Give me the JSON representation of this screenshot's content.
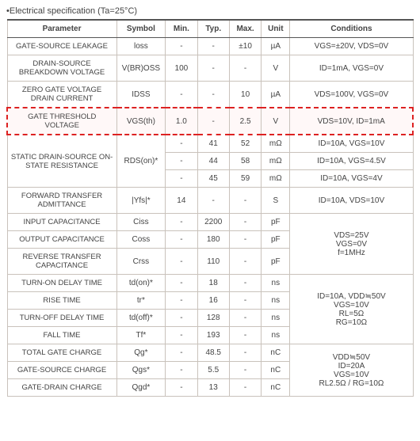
{
  "title": "•Electrical specification (Ta=25°C)",
  "headers": {
    "param": "Parameter",
    "symbol": "Symbol",
    "min": "Min.",
    "typ": "Typ.",
    "max": "Max.",
    "unit": "Unit",
    "cond": "Conditions"
  },
  "rows": {
    "r1": {
      "param": "GATE-SOURCE LEAKAGE",
      "sym": "loss",
      "min": "-",
      "typ": "-",
      "max": "±10",
      "unit": "µA",
      "cond": "VGS=±20V, VDS=0V"
    },
    "r2": {
      "param": "DRAIN-SOURCE BREAKDOWN VOLTAGE",
      "sym": "V(BR)OSS",
      "min": "100",
      "typ": "-",
      "max": "-",
      "unit": "V",
      "cond": "ID=1mA, VGS=0V"
    },
    "r3": {
      "param": "ZERO GATE VOLTAGE DRAIN CURRENT",
      "sym": "IDSS",
      "min": "-",
      "typ": "-",
      "max": "10",
      "unit": "µA",
      "cond": "VDS=100V, VGS=0V"
    },
    "r4": {
      "param": "GATE THRESHOLD VOLTAGE",
      "sym": "VGS(th)",
      "min": "1.0",
      "typ": "-",
      "max": "2.5",
      "unit": "V",
      "cond": "VDS=10V, ID=1mA"
    },
    "r5": {
      "param": "STATIC DRAIN-SOURCE ON-STATE RESISTANCE",
      "sym": "RDS(on)*",
      "a": {
        "min": "-",
        "typ": "41",
        "max": "52",
        "unit": "mΩ",
        "cond": "ID=10A, VGS=10V"
      },
      "b": {
        "min": "-",
        "typ": "44",
        "max": "58",
        "unit": "mΩ",
        "cond": "ID=10A, VGS=4.5V"
      },
      "c": {
        "min": "-",
        "typ": "45",
        "max": "59",
        "unit": "mΩ",
        "cond": "ID=10A, VGS=4V"
      }
    },
    "r6": {
      "param": "FORWARD TRANSFER ADMITTANCE",
      "sym": "|Yfs|*",
      "min": "14",
      "typ": "-",
      "max": "-",
      "unit": "S",
      "cond": "ID=10A, VDS=10V"
    },
    "r7": {
      "param": "INPUT CAPACITANCE",
      "sym": "Ciss",
      "min": "-",
      "typ": "2200",
      "max": "-",
      "unit": "pF"
    },
    "r8": {
      "param": "OUTPUT CAPACITANCE",
      "sym": "Coss",
      "min": "-",
      "typ": "180",
      "max": "-",
      "unit": "pF"
    },
    "r9": {
      "param": "REVERSE TRANSFER CAPACITANCE",
      "sym": "Crss",
      "min": "-",
      "typ": "110",
      "max": "-",
      "unit": "pF"
    },
    "cond_cap": "VDS=25V\nVGS=0V\nf=1MHz",
    "r10": {
      "param": "TURN-ON DELAY TIME",
      "sym": "td(on)*",
      "min": "-",
      "typ": "18",
      "max": "-",
      "unit": "ns"
    },
    "r11": {
      "param": "RISE TIME",
      "sym": "tr*",
      "min": "-",
      "typ": "16",
      "max": "-",
      "unit": "ns"
    },
    "r12": {
      "param": "TURN-OFF DELAY TIME",
      "sym": "td(off)*",
      "min": "-",
      "typ": "128",
      "max": "-",
      "unit": "ns"
    },
    "r13": {
      "param": "FALL TIME",
      "sym": "Tf*",
      "min": "-",
      "typ": "193",
      "max": "-",
      "unit": "ns"
    },
    "cond_sw": "ID=10A, VDD≒50V\nVGS=10V\nRL=5Ω\nRG=10Ω",
    "r14": {
      "param": "TOTAL GATE CHARGE",
      "sym": "Qg*",
      "min": "-",
      "typ": "48.5",
      "max": "-",
      "unit": "nC"
    },
    "r15": {
      "param": "GATE-SOURCE CHARGE",
      "sym": "Qgs*",
      "min": "-",
      "typ": "5.5",
      "max": "-",
      "unit": "nC"
    },
    "r16": {
      "param": "GATE-DRAIN CHARGE",
      "sym": "Qgd*",
      "min": "-",
      "typ": "13",
      "max": "-",
      "unit": "nC"
    },
    "cond_q": "VDD≒50V\nID=20A\nVGS=10V\nRL2.5Ω / RG=10Ω"
  }
}
